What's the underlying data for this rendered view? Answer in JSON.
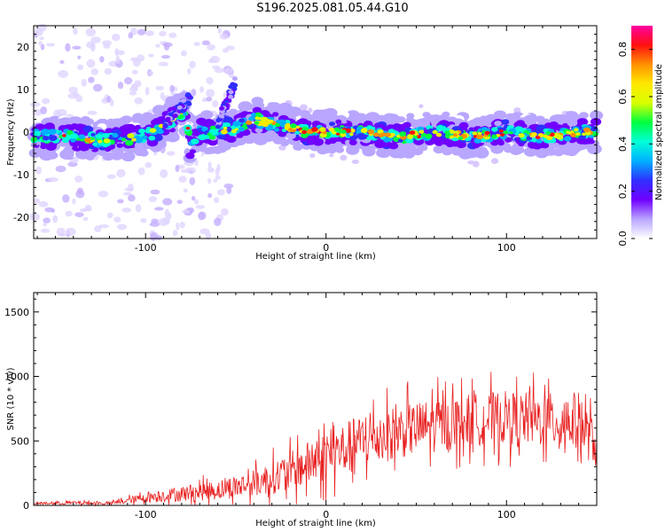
{
  "title": "S196.2025.081.05.44.G10",
  "chart_data": [
    {
      "type": "heatmap",
      "xlabel": "Height of straight line (km)",
      "ylabel": "Frequency (Hz)",
      "xlim": [
        -162,
        150
      ],
      "ylim": [
        -25,
        25
      ],
      "xticks": [
        -100,
        0,
        100
      ],
      "yticks": [
        -20,
        -10,
        0,
        10,
        20
      ],
      "colorbar": {
        "label": "Normalized spectral amplitude",
        "range": [
          0.0,
          0.9
        ],
        "ticks": [
          "0.0",
          "0.2",
          "0.4",
          "0.6",
          "0.8"
        ],
        "colors": [
          "#ffffff",
          "#b9a6ff",
          "#7000ff",
          "#2f30ff",
          "#00b0ff",
          "#00ffd8",
          "#00ff40",
          "#d8ff00",
          "#ffe800",
          "#ff9000",
          "#ff1010",
          "#ff00a0"
        ]
      },
      "ridge_x": [
        -162,
        -140,
        -120,
        -105,
        -95,
        -85,
        -78,
        -75,
        -70,
        -60,
        -50,
        -40,
        -30,
        -20,
        -10,
        0,
        20,
        40,
        60,
        80,
        100,
        120,
        140,
        150
      ],
      "ridge_y": [
        -1,
        -1,
        -2,
        -1,
        0,
        3,
        5,
        -4,
        0,
        0,
        1,
        3,
        2,
        1,
        0,
        0,
        0,
        -1,
        0,
        -1,
        0,
        -1,
        0,
        0
      ]
    },
    {
      "type": "line",
      "xlabel": "Height of straight line (km)",
      "ylabel": "SNR (10 * v/v)",
      "xlim": [
        -162,
        150
      ],
      "ylim": [
        0,
        1650
      ],
      "xticks": [
        -100,
        0,
        100
      ],
      "yticks": [
        0,
        500,
        1000,
        1500
      ],
      "color": "#e82020",
      "envelope_x": [
        -162,
        -140,
        -120,
        -100,
        -80,
        -60,
        -40,
        -20,
        0,
        20,
        40,
        60,
        80,
        100,
        120,
        140,
        150
      ],
      "envelope_mean": [
        15,
        20,
        15,
        60,
        90,
        120,
        170,
        260,
        380,
        500,
        570,
        620,
        660,
        680,
        660,
        650,
        450
      ],
      "envelope_amp": [
        15,
        25,
        20,
        70,
        110,
        140,
        190,
        280,
        360,
        380,
        380,
        380,
        370,
        380,
        380,
        420,
        300
      ]
    }
  ]
}
